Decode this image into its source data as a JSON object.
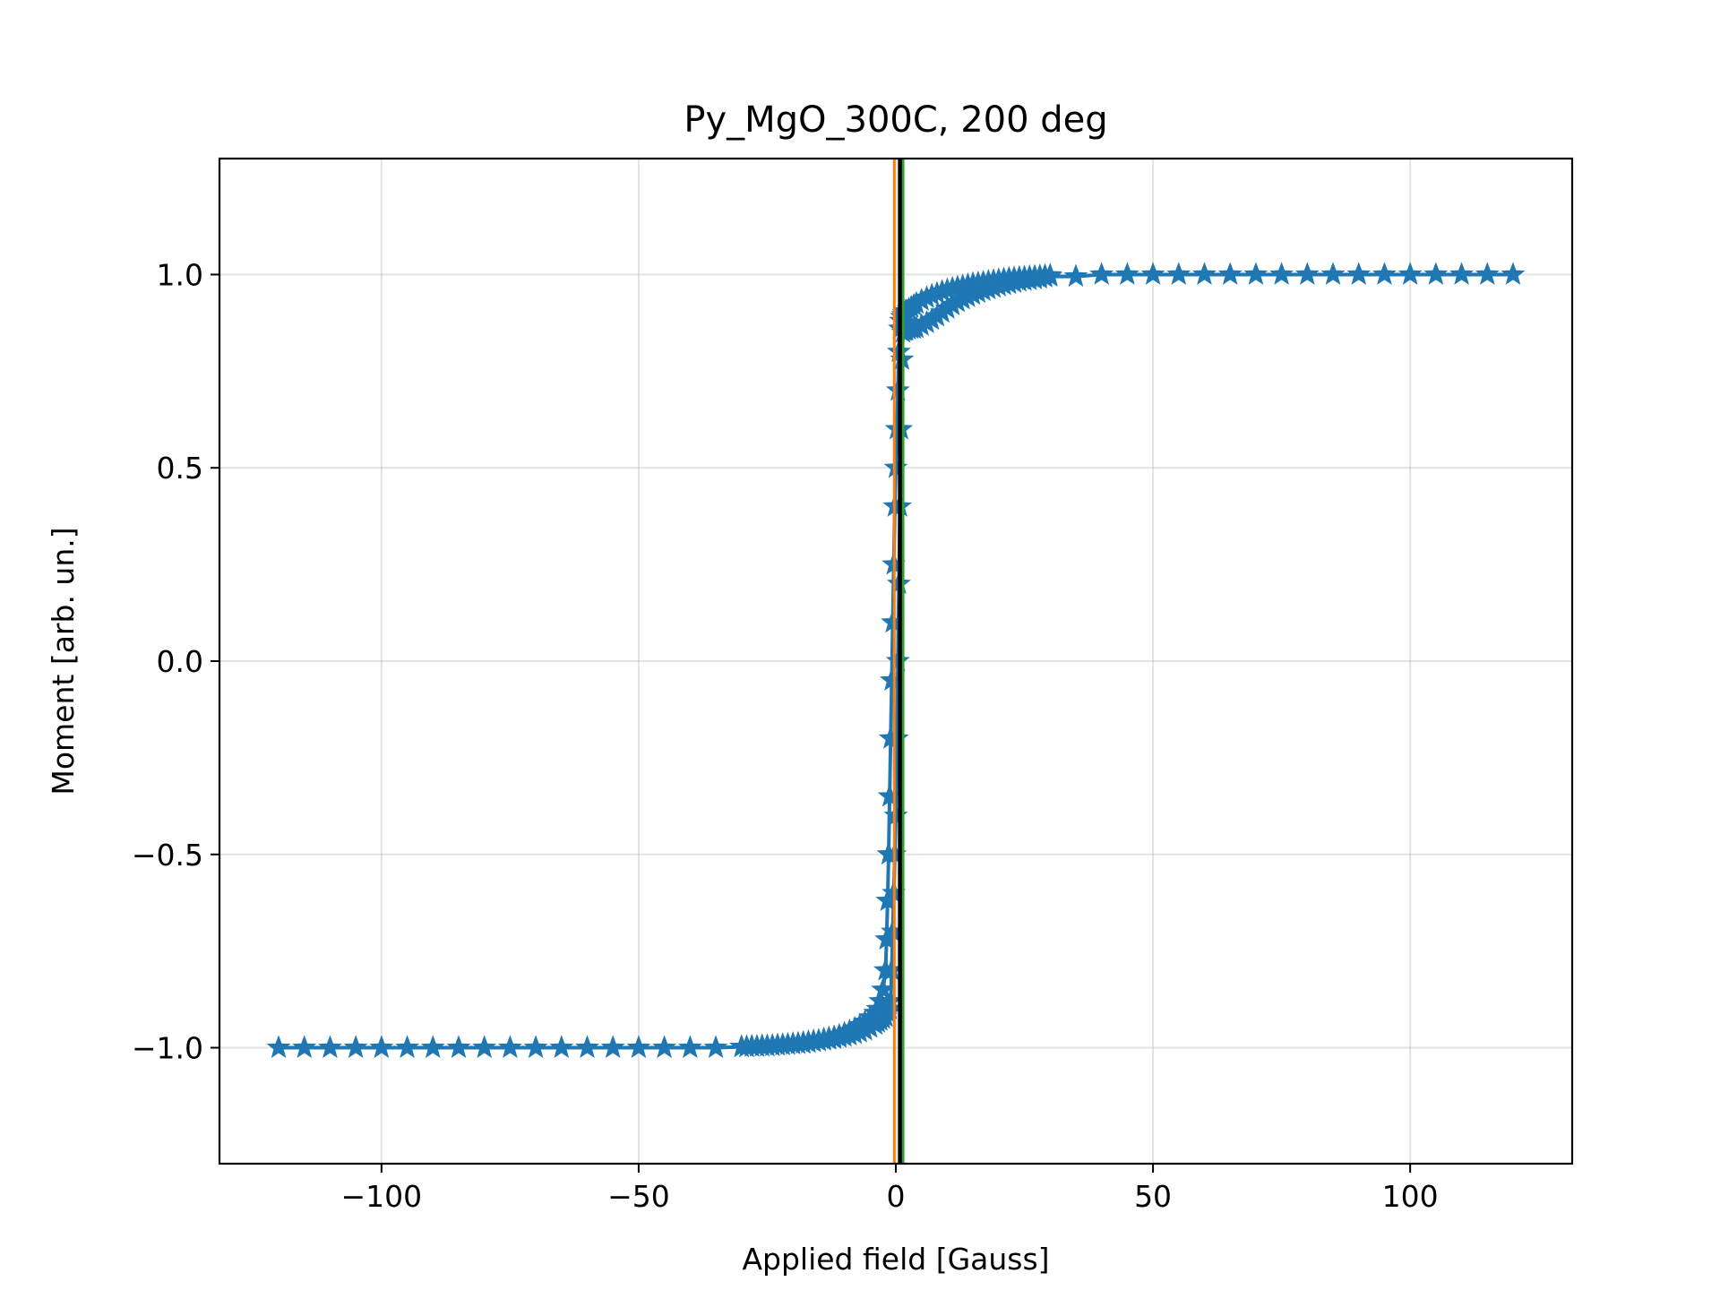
{
  "chart_data": {
    "type": "scatter",
    "title": "Py_MgO_300C, 200 deg",
    "xlabel": "Applied field [Gauss]",
    "ylabel": "Moment [arb. un.]",
    "xlim": [
      -131.5,
      131.5
    ],
    "ylim": [
      -1.3,
      1.3
    ],
    "xticks": [
      -100,
      -50,
      0,
      50,
      100
    ],
    "xtick_labels": [
      "−100",
      "−50",
      "0",
      "50",
      "100"
    ],
    "yticks": [
      -1.0,
      -0.5,
      0.0,
      0.5,
      1.0
    ],
    "ytick_labels": [
      "−1.0",
      "−0.5",
      "0.0",
      "0.5",
      "1.0"
    ],
    "grid": true,
    "marker": "star",
    "series_color": "#1f77b4",
    "vertical_lines": [
      {
        "x": -0.3,
        "color": "#ff7f0e"
      },
      {
        "x": 1.4,
        "color": "#2ca02c"
      },
      {
        "x": 0.8,
        "color": "#000000"
      }
    ],
    "series": [
      {
        "branch": "descending",
        "x": [
          120,
          115,
          110,
          105,
          100,
          95,
          90,
          85,
          80,
          75,
          70,
          65,
          60,
          55,
          50,
          45,
          40,
          35,
          30,
          29,
          28,
          27,
          26,
          25,
          24,
          23,
          22,
          21,
          20,
          19,
          18,
          17,
          16,
          15,
          14,
          13,
          12,
          11,
          10,
          9,
          8,
          7,
          6,
          5,
          4,
          3.5,
          3,
          2.5,
          2,
          1.8,
          1.6,
          1.4,
          1.2,
          1.0,
          0.8,
          0.6,
          0.4,
          0.2,
          0.0,
          -0.2,
          -0.4,
          -0.6,
          -0.8,
          -1.0,
          -1.2,
          -1.5,
          -2.0,
          -2.5,
          -3.0,
          -3.5,
          -4.0,
          -5,
          -6,
          -7,
          -8,
          -9,
          -10,
          -11,
          -12,
          -13,
          -14,
          -15,
          -16,
          -17,
          -18,
          -19,
          -20,
          -21,
          -22,
          -23,
          -24,
          -25,
          -26,
          -27,
          -28,
          -29,
          -30,
          -35,
          -40,
          -45,
          -50,
          -55,
          -60,
          -65,
          -70,
          -75,
          -80,
          -85,
          -90,
          -95,
          -100,
          -105,
          -110,
          -115,
          -120
        ],
        "y": [
          1.0,
          1.0,
          1.0,
          1.0,
          1.0,
          1.0,
          1.0,
          1.0,
          1.0,
          1.0,
          1.0,
          1.0,
          1.0,
          1.0,
          1.0,
          1.0,
          1.0,
          0.995,
          0.995,
          0.993,
          0.99,
          0.988,
          0.986,
          0.984,
          0.982,
          0.979,
          0.976,
          0.973,
          0.97,
          0.966,
          0.962,
          0.958,
          0.953,
          0.948,
          0.942,
          0.936,
          0.929,
          0.921,
          0.912,
          0.902,
          0.892,
          0.883,
          0.875,
          0.868,
          0.862,
          0.86,
          0.86,
          0.858,
          0.856,
          0.855,
          0.855,
          0.85,
          0.78,
          0.6,
          0.4,
          0.2,
          0.0,
          -0.2,
          -0.4,
          -0.5,
          -0.6,
          -0.7,
          -0.8,
          -0.88,
          -0.9,
          -0.91,
          -0.92,
          -0.925,
          -0.93,
          -0.935,
          -0.94,
          -0.948,
          -0.955,
          -0.96,
          -0.964,
          -0.968,
          -0.971,
          -0.974,
          -0.977,
          -0.979,
          -0.981,
          -0.983,
          -0.985,
          -0.987,
          -0.989,
          -0.99,
          -0.991,
          -0.992,
          -0.993,
          -0.994,
          -0.995,
          -0.996,
          -0.996,
          -0.997,
          -0.997,
          -0.998,
          -0.998,
          -1.0,
          -1.0,
          -1.0,
          -1.0,
          -1.0,
          -1.0,
          -1.0,
          -1.0,
          -1.0,
          -1.0,
          -1.0,
          -1.0,
          -1.0,
          -1.0,
          -1.0,
          -1.0,
          -1.0,
          -1.0
        ]
      },
      {
        "branch": "ascending",
        "x": [
          -30,
          -29,
          -28,
          -27,
          -26,
          -25,
          -24,
          -23,
          -22,
          -21,
          -20,
          -19,
          -18,
          -17,
          -16,
          -15,
          -14,
          -13,
          -12,
          -11,
          -10,
          -9,
          -8,
          -7,
          -6,
          -5,
          -4,
          -3.5,
          -3,
          -2.5,
          -2,
          -1.8,
          -1.6,
          -1.4,
          -1.2,
          -1.0,
          -0.8,
          -0.6,
          -0.4,
          -0.2,
          0.0,
          0.2,
          0.4,
          0.6,
          0.8,
          1.0,
          1.2,
          1.4,
          1.6,
          1.8,
          2.0,
          2.5,
          3,
          3.5,
          4,
          5,
          6,
          7,
          8,
          9,
          10,
          11,
          12,
          13,
          14,
          15,
          16,
          17,
          18,
          19,
          20,
          21,
          22,
          23,
          24,
          25,
          26,
          27,
          28,
          29,
          30
        ],
        "y": [
          -0.998,
          -0.998,
          -0.997,
          -0.997,
          -0.996,
          -0.996,
          -0.995,
          -0.994,
          -0.993,
          -0.992,
          -0.99,
          -0.989,
          -0.987,
          -0.985,
          -0.983,
          -0.981,
          -0.978,
          -0.975,
          -0.972,
          -0.968,
          -0.963,
          -0.957,
          -0.95,
          -0.942,
          -0.933,
          -0.922,
          -0.91,
          -0.9,
          -0.88,
          -0.85,
          -0.8,
          -0.72,
          -0.62,
          -0.5,
          -0.35,
          -0.2,
          -0.05,
          0.1,
          0.25,
          0.4,
          0.5,
          0.6,
          0.7,
          0.8,
          0.86,
          0.88,
          0.89,
          0.895,
          0.9,
          0.902,
          0.905,
          0.91,
          0.915,
          0.92,
          0.925,
          0.933,
          0.94,
          0.946,
          0.951,
          0.956,
          0.96,
          0.964,
          0.967,
          0.97,
          0.973,
          0.976,
          0.978,
          0.98,
          0.982,
          0.984,
          0.986,
          0.988,
          0.99,
          0.991,
          0.992,
          0.993,
          0.994,
          0.995,
          0.996,
          0.997,
          0.998
        ]
      }
    ]
  }
}
